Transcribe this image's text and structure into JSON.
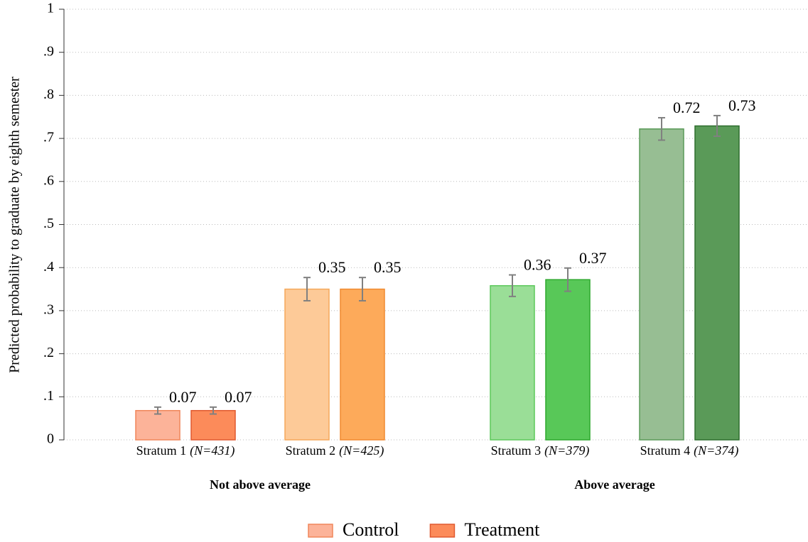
{
  "chart_data": {
    "type": "bar",
    "ylabel": "Predicted probability to graduate by eighth semester",
    "ylim": [
      0,
      1
    ],
    "yticks": [
      0,
      {
        "value": 0.1,
        "label": ".1"
      },
      {
        "value": 0.2,
        "label": ".2"
      },
      {
        "value": 0.3,
        "label": ".3"
      },
      {
        "value": 0.4,
        "label": ".4"
      },
      {
        "value": 0.5,
        "label": ".5"
      },
      {
        "value": 0.6,
        "label": ".6"
      },
      {
        "value": 0.7,
        "label": ".7"
      },
      {
        "value": 0.8,
        "label": ".8"
      },
      {
        "value": 0.9,
        "label": ".9"
      },
      1
    ],
    "grid": true,
    "groups": [
      {
        "label": "Not above average",
        "categories": [
          "Stratum 1",
          "Stratum 2"
        ],
        "notes": [
          "(N=431)",
          "(N=425)"
        ]
      },
      {
        "label": "Above average",
        "categories": [
          "Stratum 3",
          "Stratum 4"
        ],
        "notes": [
          "(N=379)",
          "(N=374)"
        ]
      }
    ],
    "series": [
      {
        "name": "Control",
        "color": "#fcb399",
        "edge_color": "#f0865a",
        "colors": [
          "#fcb399",
          "#fdca98",
          "#9ade97",
          "#97be93"
        ],
        "edge_colors": [
          "#f0865a",
          "#f5a85a",
          "#5cc85a",
          "#5a9a58"
        ],
        "values": [
          0.068,
          0.35,
          0.358,
          0.722
        ],
        "value_labels": [
          "0.07",
          "0.35",
          "0.36",
          "0.72"
        ],
        "errors": [
          0.008,
          0.027,
          0.025,
          0.026
        ]
      },
      {
        "name": "Treatment",
        "color": "#fc8b5a",
        "edge_color": "#e05a30",
        "colors": [
          "#fc8b5a",
          "#fdaa5a",
          "#58c858",
          "#5a9a58"
        ],
        "edge_colors": [
          "#e05a30",
          "#f08a30",
          "#2ea82e",
          "#2e6e2e"
        ],
        "values": [
          0.068,
          0.35,
          0.372,
          0.729
        ],
        "value_labels": [
          "0.07",
          "0.35",
          "0.37",
          "0.73"
        ],
        "errors": [
          0.008,
          0.027,
          0.027,
          0.024
        ]
      }
    ],
    "legend": "bottom"
  }
}
